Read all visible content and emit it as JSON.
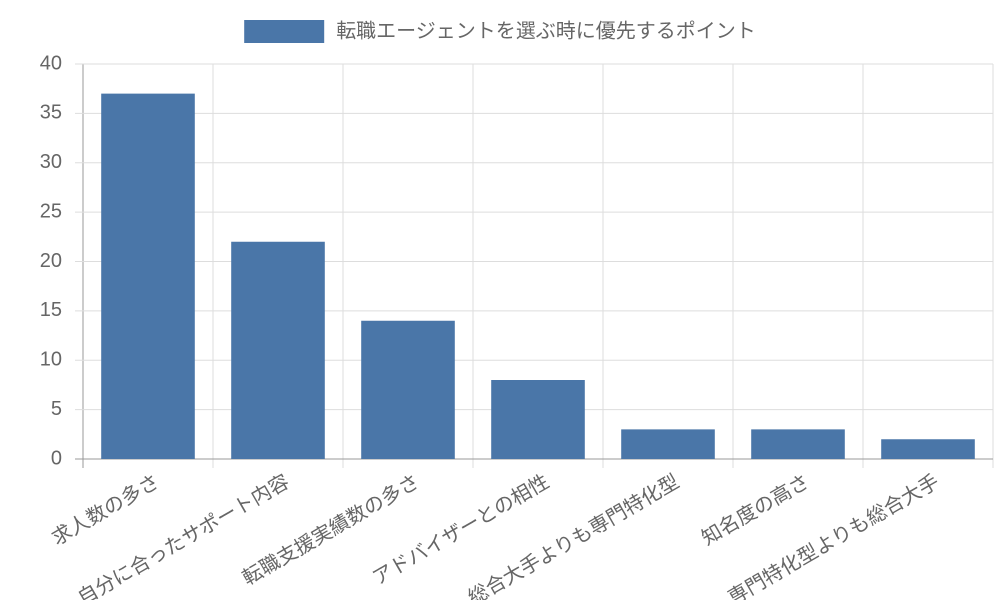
{
  "chart_data": {
    "type": "bar",
    "categories": [
      "求人数の多さ",
      "自分に合ったサポート内容",
      "転職支援実績数の多さ",
      "アドバイザーとの相性",
      "総合大手よりも専門特化型",
      "知名度の高さ",
      "専門特化型よりも総合大手"
    ],
    "series": [
      {
        "name": "転職エージェントを選ぶ時に優先するポイント",
        "color": "#4a76a8",
        "values": [
          37,
          22,
          14,
          8,
          3,
          3,
          2
        ]
      }
    ],
    "ylim": [
      0,
      40
    ],
    "yticks": [
      0,
      5,
      10,
      15,
      20,
      25,
      30,
      35,
      40
    ],
    "grid": true,
    "legend": "top"
  }
}
